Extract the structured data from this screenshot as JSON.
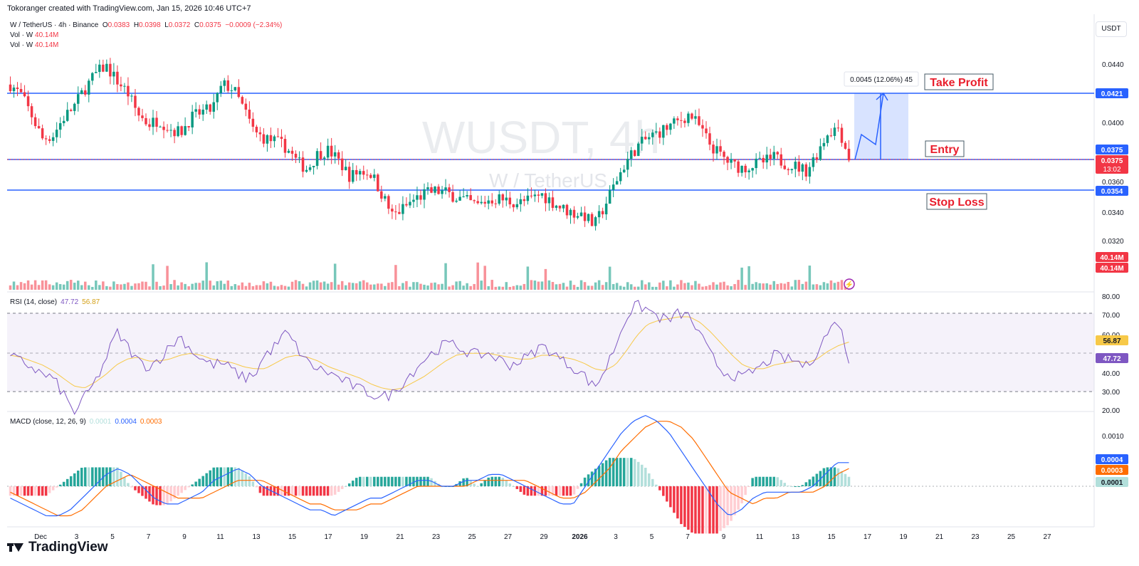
{
  "header": {
    "attribution": "Tokoranger created with TradingView.com, Jan 15, 2026 10:46 UTC+7"
  },
  "symbol_legend": {
    "pair": "W / TetherUS · 4h · Binance",
    "o_label": "O",
    "o": "0.0383",
    "h_label": "H",
    "h": "0.0398",
    "l_label": "L",
    "l": "0.0372",
    "c_label": "C",
    "c": "0.0375",
    "change": "−0.0009 (−2.34%)",
    "vol1_label": "Vol · W",
    "vol1": "40.14M",
    "vol2_label": "Vol · W",
    "vol2": "40.14M"
  },
  "currency_button": "USDT",
  "watermark": {
    "ticker": "WUSDT, 4h",
    "name": "W / TetherUS"
  },
  "price_axis": {
    "ticks": [
      "0.0440",
      "0.0400",
      "0.0360",
      "0.0340",
      "0.0320"
    ]
  },
  "price_badges": {
    "take_profit": "0.0421",
    "entry_upper": "0.0375",
    "current": "0.0375",
    "countdown": "13:02",
    "stop_loss": "0.0354",
    "volume_a": "40.14M",
    "volume_b": "40.14M"
  },
  "annotations": {
    "take_profit": "Take Profit",
    "entry": "Entry",
    "stop_loss": "Stop Loss",
    "measure": "0.0045 (12.06%) 45"
  },
  "rsi": {
    "legend_label": "RSI (14, close)",
    "value": "47.72",
    "ma": "56.87",
    "ticks": [
      "80.00",
      "70.00",
      "60.00",
      "40.00",
      "30.00",
      "20.00"
    ],
    "badge_ma": "56.87",
    "badge_value": "47.72"
  },
  "macd": {
    "legend_label": "MACD (close, 12, 26, 9)",
    "hist": "0.0001",
    "macd": "0.0004",
    "signal": "0.0003",
    "ticks": [
      "0.0010"
    ],
    "badge_macd": "0.0004",
    "badge_signal": "0.0003",
    "badge_hist": "0.0001"
  },
  "time_axis": {
    "labels": [
      "Dec",
      "3",
      "5",
      "7",
      "9",
      "11",
      "13",
      "15",
      "17",
      "19",
      "21",
      "23",
      "25",
      "27",
      "29",
      "2026",
      "3",
      "5",
      "7",
      "9",
      "11",
      "13",
      "15",
      "17",
      "19",
      "21",
      "23",
      "25",
      "27"
    ]
  },
  "brand": "TradingView",
  "colors": {
    "up": "#089981",
    "down": "#f23645",
    "level": "#2962ff",
    "rsi": "#7e57c2",
    "rsi_ma": "#f7c948",
    "macd": "#2962ff",
    "signal": "#ff6d00",
    "label": "#e91e2c"
  },
  "chart_data": {
    "type": "candlestick",
    "timeframe": "4h",
    "x": [
      "Dec",
      "3",
      "5",
      "7",
      "9",
      "11",
      "13",
      "15",
      "17",
      "19",
      "21",
      "23",
      "25",
      "27",
      "29",
      "2026",
      "3",
      "5",
      "7",
      "9",
      "11",
      "13",
      "15"
    ],
    "close_path": [
      0.0425,
      0.0418,
      0.0404,
      0.0388,
      0.039,
      0.0402,
      0.041,
      0.0422,
      0.0432,
      0.0438,
      0.0428,
      0.042,
      0.0405,
      0.0398,
      0.0401,
      0.0395,
      0.0392,
      0.0402,
      0.0406,
      0.0408,
      0.0425,
      0.0422,
      0.0408,
      0.0392,
      0.0388,
      0.0386,
      0.0382,
      0.0372,
      0.0367,
      0.0378,
      0.038,
      0.0372,
      0.0362,
      0.0366,
      0.0364,
      0.035,
      0.0335,
      0.034,
      0.0346,
      0.035,
      0.0352,
      0.0351,
      0.0348,
      0.0345,
      0.0342,
      0.0346,
      0.0347,
      0.0345,
      0.0344,
      0.0346,
      0.035,
      0.0345,
      0.034,
      0.0337,
      0.0336,
      0.0328,
      0.0342,
      0.0358,
      0.0372,
      0.0382,
      0.0388,
      0.0392,
      0.0396,
      0.04,
      0.0405,
      0.0395,
      0.0383,
      0.0376,
      0.037,
      0.0368,
      0.037,
      0.0372,
      0.0375,
      0.0371,
      0.0369,
      0.0366,
      0.0378,
      0.0392,
      0.0396,
      0.0375
    ],
    "support_resistance": {
      "take_profit": 0.0421,
      "entry": 0.0375,
      "stop_loss": 0.0354
    },
    "projection": {
      "gain": 0.0045,
      "gain_pct": 12.06,
      "bars": 45
    },
    "rsi_path": [
      49,
      47,
      44,
      40,
      38,
      30,
      20,
      28,
      36,
      48,
      62,
      55,
      47,
      44,
      48,
      54,
      60,
      53,
      48,
      45,
      46,
      42,
      38,
      40,
      50,
      55,
      62,
      54,
      46,
      43,
      41,
      38,
      35,
      32,
      30,
      28,
      30,
      36,
      42,
      48,
      52,
      56,
      55,
      52,
      50,
      51,
      48,
      45,
      47,
      50,
      55,
      52,
      47,
      44,
      40,
      33,
      42,
      55,
      70,
      76,
      74,
      70,
      68,
      72,
      70,
      60,
      50,
      42,
      40,
      38,
      42,
      45,
      50,
      48,
      47,
      44,
      52,
      62,
      68,
      47.72
    ],
    "rsi_ma_path": [
      50,
      49,
      47,
      45,
      42,
      38,
      34,
      33,
      36,
      40,
      45,
      48,
      49,
      47,
      47,
      48,
      50,
      51,
      50,
      48,
      47,
      46,
      44,
      43,
      43,
      46,
      49,
      50,
      49,
      47,
      44,
      42,
      40,
      38,
      35,
      33,
      32,
      33,
      36,
      39,
      43,
      47,
      50,
      51,
      51,
      51,
      50,
      49,
      48,
      48,
      50,
      50,
      49,
      48,
      46,
      43,
      42,
      45,
      52,
      60,
      66,
      68,
      69,
      70,
      70,
      67,
      62,
      56,
      50,
      45,
      43,
      43,
      45,
      46,
      47,
      46,
      48,
      52,
      55,
      56.87
    ],
    "rsi_range": [
      20,
      80
    ],
    "macd_path": [
      -0.0002,
      -0.0003,
      -0.0004,
      -0.0005,
      -0.0005,
      -0.0004,
      -0.0002,
      0.0,
      0.0002,
      0.0003,
      0.0002,
      0.0,
      -0.0002,
      -0.0003,
      -0.0003,
      -0.0002,
      -0.0001,
      0.0001,
      0.0002,
      0.0003,
      0.0002,
      0.0,
      -0.0001,
      -0.0002,
      -0.0003,
      -0.0004,
      -0.0004,
      -0.0005,
      -0.0004,
      -0.0003,
      -0.0002,
      -0.0002,
      -0.0001,
      0.0,
      0.0001,
      0.0001,
      0.0,
      0.0,
      0.0001,
      0.0001,
      0.0002,
      0.0002,
      0.0001,
      0.0,
      -0.0001,
      -0.0002,
      -0.0003,
      -0.0003,
      0.0,
      0.0003,
      0.0006,
      0.0009,
      0.0011,
      0.0012,
      0.0011,
      0.0009,
      0.0006,
      0.0003,
      0.0,
      -0.0003,
      -0.0005,
      -0.0004,
      -0.0002,
      -0.0001,
      -0.0001,
      -0.0001,
      -0.0001,
      0.0,
      0.0002,
      0.0004,
      0.0004
    ],
    "signal_path": [
      -0.0001,
      -0.0002,
      -0.0003,
      -0.0004,
      -0.0005,
      -0.0005,
      -0.0004,
      -0.0002,
      0.0,
      0.0001,
      0.0002,
      0.0001,
      0.0,
      -0.0001,
      -0.0002,
      -0.0002,
      -0.0002,
      -0.0001,
      0.0,
      0.0001,
      0.0001,
      0.0001,
      0.0,
      -0.0001,
      -0.0002,
      -0.0003,
      -0.0003,
      -0.0004,
      -0.0004,
      -0.0004,
      -0.0003,
      -0.0003,
      -0.0002,
      -0.0001,
      0.0,
      0.0,
      0.0,
      0.0,
      0.0,
      0.0001,
      0.0001,
      0.0001,
      0.0001,
      0.0001,
      0.0,
      -0.0001,
      -0.0002,
      -0.0002,
      -0.0001,
      0.0001,
      0.0003,
      0.0006,
      0.0008,
      0.001,
      0.0011,
      0.0011,
      0.001,
      0.0008,
      0.0005,
      0.0002,
      -0.0001,
      -0.0002,
      -0.0003,
      -0.0002,
      -0.0002,
      -0.0001,
      -0.0001,
      -0.0001,
      0.0,
      0.0002,
      0.0003
    ],
    "macd_range": [
      -0.0006,
      0.0013
    ]
  }
}
